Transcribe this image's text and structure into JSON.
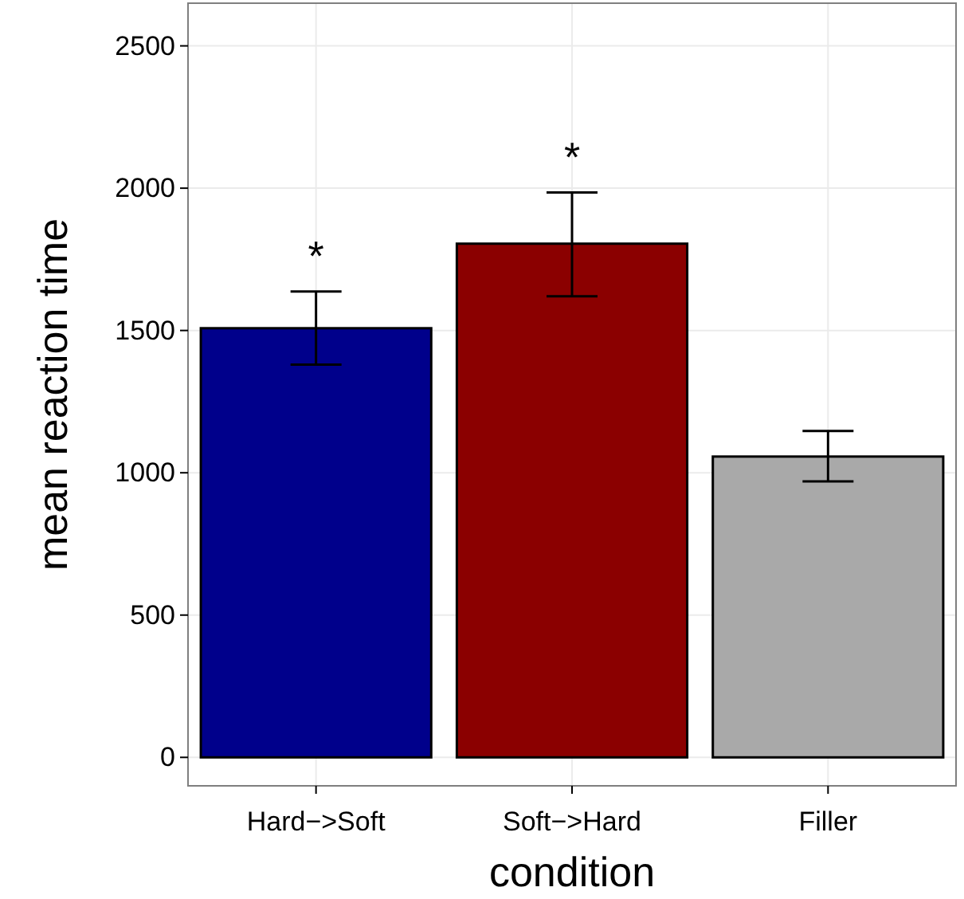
{
  "chart_data": {
    "type": "bar",
    "xlabel": "condition",
    "ylabel": "mean reaction time",
    "categories": [
      "Hard−>Soft",
      "Soft−>Hard",
      "Filler"
    ],
    "values": [
      1508,
      1805,
      1057
    ],
    "colors": [
      "#00008b",
      "#8b0000",
      "#a9a9a9"
    ],
    "errors": [
      [
        1380,
        1637
      ],
      [
        1620,
        1985
      ],
      [
        970,
        1147
      ]
    ],
    "ylim": [
      -100,
      2650
    ],
    "yticks": [
      0,
      500,
      1000,
      1500,
      2000,
      2500
    ],
    "grid": true,
    "annotations": [
      "*",
      "*"
    ]
  }
}
